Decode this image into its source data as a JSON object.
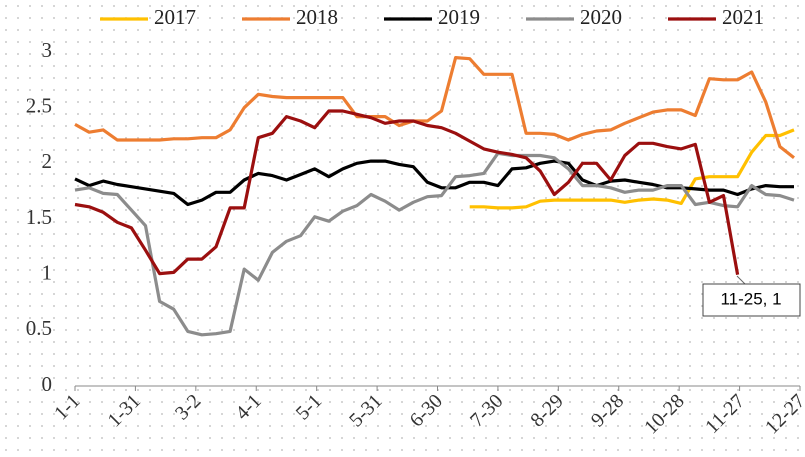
{
  "chart_data": {
    "type": "line",
    "x": [
      0,
      7,
      14,
      21,
      28,
      35,
      42,
      49,
      56,
      63,
      70,
      77,
      84,
      91,
      98,
      105,
      112,
      119,
      126,
      133,
      140,
      147,
      154,
      161,
      168,
      175,
      182,
      189,
      196,
      203,
      210,
      217,
      224,
      231,
      238,
      245,
      252,
      259,
      266,
      273,
      280,
      287,
      294,
      301,
      308,
      315,
      322,
      329,
      336,
      343,
      350,
      357
    ],
    "xlim": [
      0,
      360
    ],
    "xticks": [
      {
        "value": 0,
        "label": "1-1"
      },
      {
        "value": 30,
        "label": "1-31"
      },
      {
        "value": 60,
        "label": "3-2"
      },
      {
        "value": 90,
        "label": "4-1"
      },
      {
        "value": 120,
        "label": "5-1"
      },
      {
        "value": 150,
        "label": "5-31"
      },
      {
        "value": 180,
        "label": "6-30"
      },
      {
        "value": 210,
        "label": "7-30"
      },
      {
        "value": 240,
        "label": "8-29"
      },
      {
        "value": 270,
        "label": "9-28"
      },
      {
        "value": 300,
        "label": "10-28"
      },
      {
        "value": 330,
        "label": "11-27"
      },
      {
        "value": 360,
        "label": "12-27"
      }
    ],
    "ylim": [
      0,
      3
    ],
    "yticks": [
      0,
      0.5,
      1,
      1.5,
      2,
      2.5,
      3
    ],
    "legend": "top",
    "series": [
      {
        "name": "2017",
        "color": "#ffc000",
        "values": [
          null,
          null,
          null,
          null,
          null,
          null,
          null,
          null,
          null,
          null,
          null,
          null,
          null,
          null,
          null,
          null,
          null,
          null,
          null,
          null,
          null,
          null,
          null,
          null,
          null,
          null,
          null,
          null,
          1.61,
          1.61,
          1.6,
          1.6,
          1.61,
          1.66,
          1.67,
          1.67,
          1.67,
          1.67,
          1.67,
          1.65,
          1.67,
          1.68,
          1.67,
          1.64,
          1.86,
          1.88,
          1.88,
          1.88,
          2.1,
          2.25,
          2.25,
          2.3
        ]
      },
      {
        "name": "2018",
        "color": "#ed7d31",
        "values": [
          2.35,
          2.28,
          2.3,
          2.21,
          2.21,
          2.21,
          2.21,
          2.22,
          2.22,
          2.23,
          2.23,
          2.3,
          2.5,
          2.62,
          2.6,
          2.59,
          2.59,
          2.59,
          2.59,
          2.59,
          2.42,
          2.42,
          2.42,
          2.34,
          2.38,
          2.38,
          2.47,
          2.95,
          2.94,
          2.8,
          2.8,
          2.8,
          2.27,
          2.27,
          2.26,
          2.21,
          2.26,
          2.29,
          2.3,
          2.36,
          2.41,
          2.46,
          2.48,
          2.48,
          2.43,
          2.76,
          2.75,
          2.75,
          2.82,
          2.55,
          2.15,
          2.05
        ]
      },
      {
        "name": "2019",
        "color": "#000000",
        "values": [
          1.86,
          1.8,
          1.84,
          1.81,
          1.79,
          1.77,
          1.75,
          1.73,
          1.63,
          1.67,
          1.74,
          1.74,
          1.85,
          1.91,
          1.89,
          1.85,
          1.9,
          1.95,
          1.88,
          1.95,
          2.0,
          2.02,
          2.02,
          1.99,
          1.97,
          1.83,
          1.78,
          1.78,
          1.83,
          1.83,
          1.8,
          1.95,
          1.96,
          2.0,
          2.02,
          2.0,
          1.85,
          1.8,
          1.84,
          1.85,
          1.83,
          1.81,
          1.78,
          1.78,
          1.77,
          1.76,
          1.76,
          1.72,
          1.77,
          1.8,
          1.79,
          1.79
        ]
      },
      {
        "name": "2020",
        "color": "#8c8c8c",
        "values": [
          1.76,
          1.78,
          1.73,
          1.72,
          1.58,
          1.44,
          0.76,
          0.69,
          0.49,
          0.46,
          0.47,
          0.49,
          1.05,
          0.95,
          1.2,
          1.3,
          1.35,
          1.52,
          1.48,
          1.57,
          1.62,
          1.72,
          1.66,
          1.58,
          1.65,
          1.7,
          1.71,
          1.88,
          1.89,
          1.91,
          2.09,
          2.07,
          2.07,
          2.07,
          2.05,
          1.95,
          1.8,
          1.8,
          1.78,
          1.74,
          1.76,
          1.76,
          1.8,
          1.8,
          1.63,
          1.65,
          1.62,
          1.61,
          1.8,
          1.72,
          1.71,
          1.67
        ]
      },
      {
        "name": "2021",
        "color": "#9b0f0f",
        "values": [
          1.63,
          1.61,
          1.56,
          1.47,
          1.42,
          1.22,
          1.01,
          1.02,
          1.14,
          1.14,
          1.25,
          1.6,
          1.6,
          2.23,
          2.27,
          2.42,
          2.38,
          2.32,
          2.47,
          2.47,
          2.44,
          2.41,
          2.36,
          2.38,
          2.38,
          2.34,
          2.32,
          2.27,
          2.2,
          2.13,
          2.1,
          2.08,
          2.05,
          1.93,
          1.72,
          1.83,
          2.0,
          2.0,
          1.85,
          2.07,
          2.18,
          2.18,
          2.15,
          2.13,
          2.17,
          1.65,
          1.71,
          1,
          null,
          null,
          null,
          null
        ]
      }
    ],
    "annotations": [
      "11-25, 1"
    ]
  }
}
